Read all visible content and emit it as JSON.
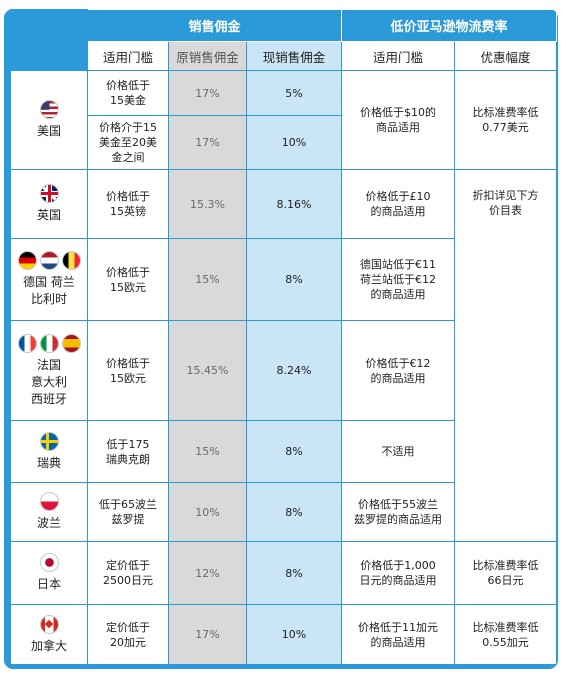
{
  "header": {
    "group_sales_commission": "销售佣金",
    "group_low_price_fee": "低价亚马逊物流费率",
    "col_threshold": "适用门槛",
    "col_original_commission": "原销售佣金",
    "col_current_commission": "现销售佣金",
    "col_low_price_threshold": "适用门槛",
    "col_discount": "优惠幅度"
  },
  "colors": {
    "header_blue": "#2a9ad8",
    "original_gray": "#d9d9d9",
    "current_light_blue": "#c9e5f6"
  },
  "rows": [
    {
      "country": "美国",
      "flag_icons": [
        "us-flag-icon"
      ],
      "threshold": "价格低于\n15美金",
      "original": "17%",
      "current": "5%",
      "low_price_threshold": "价格低于$10的\n商品适用",
      "discount": "比标准费率低\n0.77美元"
    },
    {
      "threshold": "价格介于15\n美金至20美\n金之间",
      "original": "17%",
      "current": "10%"
    },
    {
      "country": "英国",
      "flag_icons": [
        "uk-flag-icon"
      ],
      "threshold": "价格低于\n15英镑",
      "original": "15.3%",
      "current": "8.16%",
      "low_price_threshold": "价格低于£10\n的商品适用",
      "discount": "折扣详见下方\n价目表"
    },
    {
      "country": "德国 荷兰\n比利时",
      "flag_icons": [
        "germany-flag-icon",
        "netherlands-flag-icon",
        "belgium-flag-icon"
      ],
      "threshold": "价格低于\n15欧元",
      "original": "15%",
      "current": "8%",
      "low_price_threshold": "德国站低于€11\n荷兰站低于€12\n的商品适用"
    },
    {
      "country": "法国\n意大利\n西班牙",
      "flag_icons": [
        "france-flag-icon",
        "italy-flag-icon",
        "spain-flag-icon"
      ],
      "threshold": "价格低于\n15欧元",
      "original": "15.45%",
      "current": "8.24%",
      "low_price_threshold": "价格低于€12\n的商品适用"
    },
    {
      "country": "瑞典",
      "flag_icons": [
        "sweden-flag-icon"
      ],
      "threshold": "低于175\n瑞典克朗",
      "original": "15%",
      "current": "8%",
      "low_price_threshold": "不适用"
    },
    {
      "country": "波兰",
      "flag_icons": [
        "poland-flag-icon"
      ],
      "threshold": "低于65波兰\n兹罗提",
      "original": "10%",
      "current": "8%",
      "low_price_threshold": "价格低于55波兰\n兹罗提的商品适用"
    },
    {
      "country": "日本",
      "flag_icons": [
        "japan-flag-icon"
      ],
      "threshold": "定价低于\n2500日元",
      "original": "12%",
      "current": "8%",
      "low_price_threshold": "价格低于1,000\n日元的商品适用",
      "discount": "比标准费率低\n66日元"
    },
    {
      "country": "加拿大",
      "flag_icons": [
        "canada-flag-icon"
      ],
      "threshold": "定价低于\n20加元",
      "original": "17%",
      "current": "10%",
      "low_price_threshold": "价格低于11加元\n的商品适用",
      "discount": "比标准费率低\n0.55加元"
    }
  ]
}
